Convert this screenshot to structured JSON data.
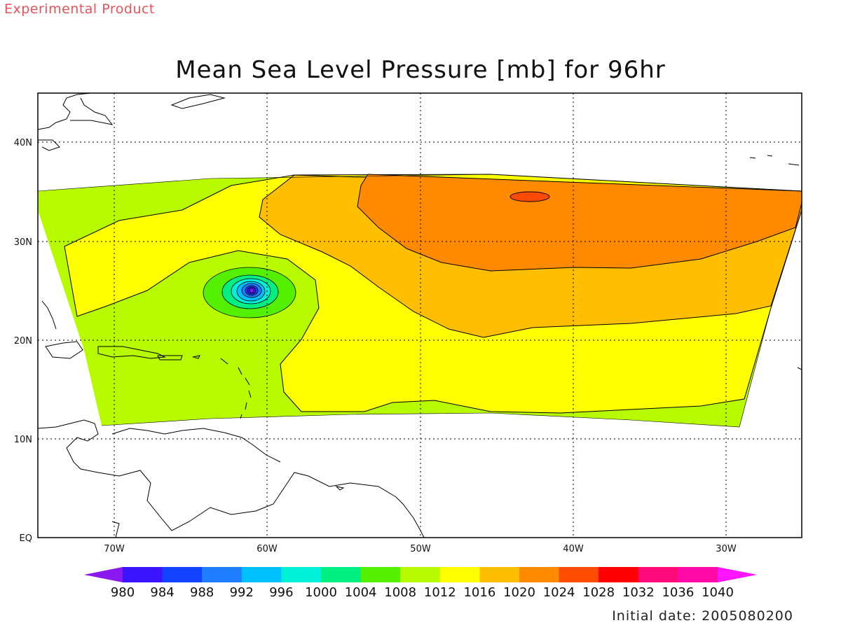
{
  "header": {
    "product_label": "Experimental Product",
    "title": "Mean Sea Level Pressure [mb] for 96hr"
  },
  "map": {
    "lat_labels": [
      "40N",
      "30N",
      "20N",
      "10N",
      "EQ"
    ],
    "lon_labels": [
      "70W",
      "60W",
      "50W",
      "40W",
      "30W"
    ]
  },
  "colorbar": {
    "labels": [
      "980",
      "984",
      "988",
      "992",
      "996",
      "1000",
      "1004",
      "1008",
      "1012",
      "1016",
      "1020",
      "1024",
      "1028",
      "1032",
      "1036",
      "1040"
    ],
    "colors": [
      "#8a19f0",
      "#3a14ff",
      "#1443ff",
      "#1f7eff",
      "#00bfff",
      "#00f0d8",
      "#00ee82",
      "#55f000",
      "#b8fa00",
      "#ffff00",
      "#ffbe00",
      "#ff8a00",
      "#ff4b00",
      "#ff0000",
      "#ff0a78",
      "#ff0aa8",
      "#ff14ff"
    ]
  },
  "footer": {
    "initial_date": "Initial date: 2005080200"
  }
}
